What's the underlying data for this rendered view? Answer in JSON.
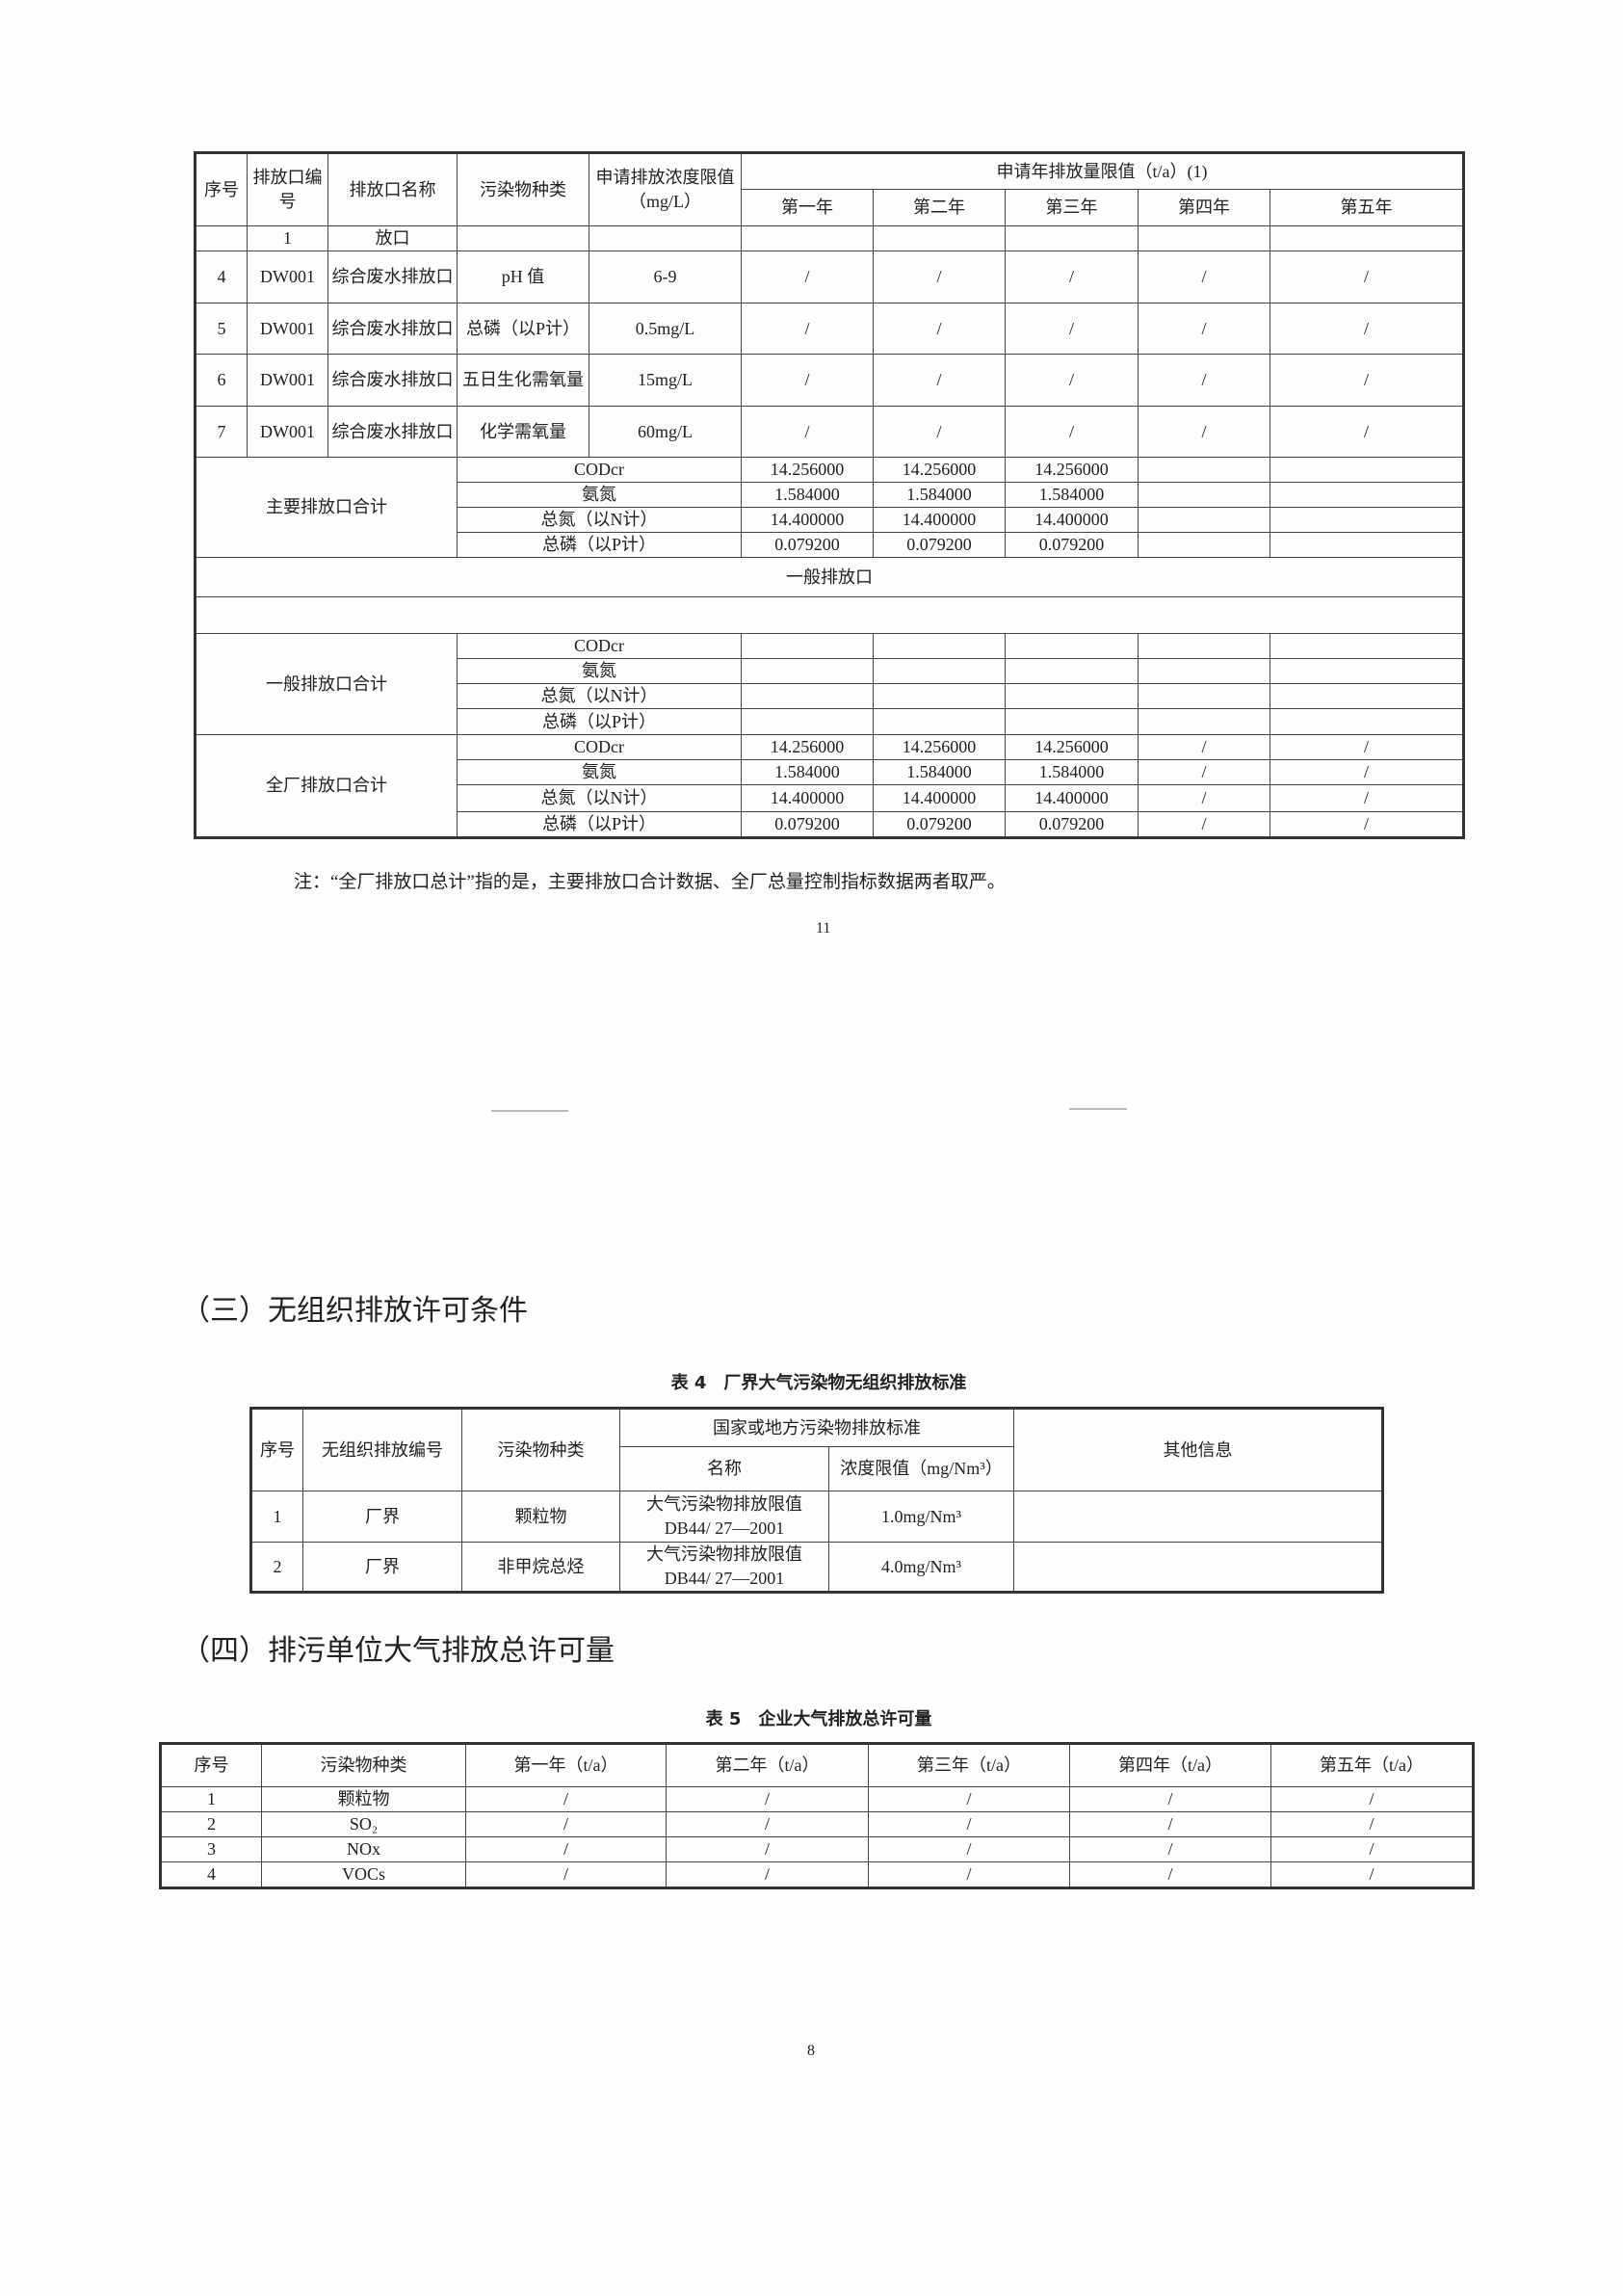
{
  "table1": {
    "rows": [
      [
        {
          "t": "序号",
          "rs": 2
        },
        {
          "t": "排放口编号",
          "rs": 2
        },
        {
          "t": "排放口名称",
          "rs": 2
        },
        {
          "t": "污染物种类",
          "rs": 2
        },
        {
          "t": "申请排放浓度限值（mg/L）",
          "rs": 2
        },
        {
          "t": "申请年排放量限值（t/a）(1)",
          "cs": 5
        }
      ],
      [
        {
          "t": "第一年"
        },
        {
          "t": "第二年"
        },
        {
          "t": "第三年"
        },
        {
          "t": "第四年"
        },
        {
          "t": "第五年"
        }
      ],
      [
        {
          "t": ""
        },
        {
          "t": "1"
        },
        {
          "t": "放口"
        },
        {
          "t": ""
        },
        {
          "t": ""
        },
        {
          "t": ""
        },
        {
          "t": ""
        },
        {
          "t": ""
        },
        {
          "t": ""
        },
        {
          "t": ""
        }
      ],
      [
        {
          "t": "4"
        },
        {
          "t": "DW001"
        },
        {
          "t": "综合废水排放口"
        },
        {
          "t": "pH 值"
        },
        {
          "t": "6-9"
        },
        {
          "t": "/"
        },
        {
          "t": "/"
        },
        {
          "t": "/"
        },
        {
          "t": "/"
        },
        {
          "t": "/"
        }
      ],
      [
        {
          "t": "5"
        },
        {
          "t": "DW001"
        },
        {
          "t": "综合废水排放口"
        },
        {
          "t": "总磷（以P计）"
        },
        {
          "t": "0.5mg/L"
        },
        {
          "t": "/"
        },
        {
          "t": "/"
        },
        {
          "t": "/"
        },
        {
          "t": "/"
        },
        {
          "t": "/"
        }
      ],
      [
        {
          "t": "6"
        },
        {
          "t": "DW001"
        },
        {
          "t": "综合废水排放口"
        },
        {
          "t": "五日生化需氧量"
        },
        {
          "t": "15mg/L"
        },
        {
          "t": "/"
        },
        {
          "t": "/"
        },
        {
          "t": "/"
        },
        {
          "t": "/"
        },
        {
          "t": "/"
        }
      ],
      [
        {
          "t": "7"
        },
        {
          "t": "DW001"
        },
        {
          "t": "综合废水排放口"
        },
        {
          "t": "化学需氧量"
        },
        {
          "t": "60mg/L"
        },
        {
          "t": "/"
        },
        {
          "t": "/"
        },
        {
          "t": "/"
        },
        {
          "t": "/"
        },
        {
          "t": "/"
        }
      ],
      [
        {
          "t": "主要排放口合计",
          "cs": 3,
          "rs": 4
        },
        {
          "t": "CODcr",
          "cs": 2
        },
        {
          "t": "14.256000"
        },
        {
          "t": "14.256000"
        },
        {
          "t": "14.256000"
        },
        {
          "t": ""
        },
        {
          "t": ""
        }
      ],
      [
        {
          "t": "氨氮",
          "cs": 2
        },
        {
          "t": "1.584000"
        },
        {
          "t": "1.584000"
        },
        {
          "t": "1.584000"
        },
        {
          "t": ""
        },
        {
          "t": ""
        }
      ],
      [
        {
          "t": "总氮（以N计）",
          "cs": 2
        },
        {
          "t": "14.400000"
        },
        {
          "t": "14.400000"
        },
        {
          "t": "14.400000"
        },
        {
          "t": ""
        },
        {
          "t": ""
        }
      ],
      [
        {
          "t": "总磷（以P计）",
          "cs": 2
        },
        {
          "t": "0.079200"
        },
        {
          "t": "0.079200"
        },
        {
          "t": "0.079200"
        },
        {
          "t": ""
        },
        {
          "t": ""
        }
      ],
      [
        {
          "t": "一般排放口",
          "cs": 10
        }
      ],
      [
        {
          "t": "",
          "cs": 10
        }
      ],
      [
        {
          "t": "一般排放口合计",
          "cs": 3,
          "rs": 4
        },
        {
          "t": "CODcr",
          "cs": 2
        },
        {
          "t": ""
        },
        {
          "t": ""
        },
        {
          "t": ""
        },
        {
          "t": ""
        },
        {
          "t": ""
        }
      ],
      [
        {
          "t": "氨氮",
          "cs": 2
        },
        {
          "t": ""
        },
        {
          "t": ""
        },
        {
          "t": ""
        },
        {
          "t": ""
        },
        {
          "t": ""
        }
      ],
      [
        {
          "t": "总氮（以N计）",
          "cs": 2
        },
        {
          "t": ""
        },
        {
          "t": ""
        },
        {
          "t": ""
        },
        {
          "t": ""
        },
        {
          "t": ""
        }
      ],
      [
        {
          "t": "总磷（以P计）",
          "cs": 2
        },
        {
          "t": ""
        },
        {
          "t": ""
        },
        {
          "t": ""
        },
        {
          "t": ""
        },
        {
          "t": ""
        }
      ],
      [
        {
          "t": "全厂排放口合计",
          "cs": 3,
          "rs": 4
        },
        {
          "t": "CODcr",
          "cs": 2
        },
        {
          "t": "14.256000"
        },
        {
          "t": "14.256000"
        },
        {
          "t": "14.256000"
        },
        {
          "t": "/"
        },
        {
          "t": "/"
        }
      ],
      [
        {
          "t": "氨氮",
          "cs": 2
        },
        {
          "t": "1.584000"
        },
        {
          "t": "1.584000"
        },
        {
          "t": "1.584000"
        },
        {
          "t": "/"
        },
        {
          "t": "/"
        }
      ],
      [
        {
          "t": "总氮（以N计）",
          "cs": 2
        },
        {
          "t": "14.400000"
        },
        {
          "t": "14.400000"
        },
        {
          "t": "14.400000"
        },
        {
          "t": "/"
        },
        {
          "t": "/"
        }
      ],
      [
        {
          "t": "总磷（以P计）",
          "cs": 2
        },
        {
          "t": "0.079200"
        },
        {
          "t": "0.079200"
        },
        {
          "t": "0.079200"
        },
        {
          "t": "/"
        },
        {
          "t": "/"
        }
      ]
    ]
  },
  "note": "注：“全厂排放口总计”指的是，主要排放口合计数据、全厂总量控制指标数据两者取严。",
  "page_number_top": "11",
  "section3_heading": "（三）无组织排放许可条件",
  "table4_caption": "表 4　厂界大气污染物无组织排放标准",
  "table4": {
    "rows": [
      [
        {
          "t": "序号",
          "rs": 2
        },
        {
          "t": "无组织排放编号",
          "rs": 2
        },
        {
          "t": "污染物种类",
          "rs": 2
        },
        {
          "t": "国家或地方污染物排放标准",
          "cs": 2
        },
        {
          "t": "其他信息",
          "rs": 2
        }
      ],
      [
        {
          "t": "名称"
        },
        {
          "t": "浓度限值（mg/Nm³）"
        }
      ],
      [
        {
          "t": "1"
        },
        {
          "t": "厂界"
        },
        {
          "t": "颗粒物"
        },
        {
          "t": "大气污染物排放限值 DB44/ 27—2001"
        },
        {
          "t": "1.0mg/Nm³"
        },
        {
          "t": ""
        }
      ],
      [
        {
          "t": "2"
        },
        {
          "t": "厂界"
        },
        {
          "t": "非甲烷总烃"
        },
        {
          "t": "大气污染物排放限值 DB44/ 27—2001"
        },
        {
          "t": "4.0mg/Nm³"
        },
        {
          "t": ""
        }
      ]
    ]
  },
  "section4_heading": "（四）排污单位大气排放总许可量",
  "table5_caption": "表 5　企业大气排放总许可量",
  "table5": {
    "rows": [
      [
        {
          "t": "序号"
        },
        {
          "t": "污染物种类"
        },
        {
          "t": "第一年（t/a）"
        },
        {
          "t": "第二年（t/a）"
        },
        {
          "t": "第三年（t/a）"
        },
        {
          "t": "第四年（t/a）"
        },
        {
          "t": "第五年（t/a）"
        }
      ],
      [
        {
          "t": "1"
        },
        {
          "t": "颗粒物"
        },
        {
          "t": "/"
        },
        {
          "t": "/"
        },
        {
          "t": "/"
        },
        {
          "t": "/"
        },
        {
          "t": "/"
        }
      ],
      [
        {
          "t": "2"
        },
        {
          "t": "SO₂"
        },
        {
          "t": "/"
        },
        {
          "t": "/"
        },
        {
          "t": "/"
        },
        {
          "t": "/"
        },
        {
          "t": "/"
        }
      ],
      [
        {
          "t": "3"
        },
        {
          "t": "NOx"
        },
        {
          "t": "/"
        },
        {
          "t": "/"
        },
        {
          "t": "/"
        },
        {
          "t": "/"
        },
        {
          "t": "/"
        }
      ],
      [
        {
          "t": "4"
        },
        {
          "t": "VOCs"
        },
        {
          "t": "/"
        },
        {
          "t": "/"
        },
        {
          "t": "/"
        },
        {
          "t": "/"
        },
        {
          "t": "/"
        }
      ]
    ]
  },
  "page_number_bottom": "8"
}
